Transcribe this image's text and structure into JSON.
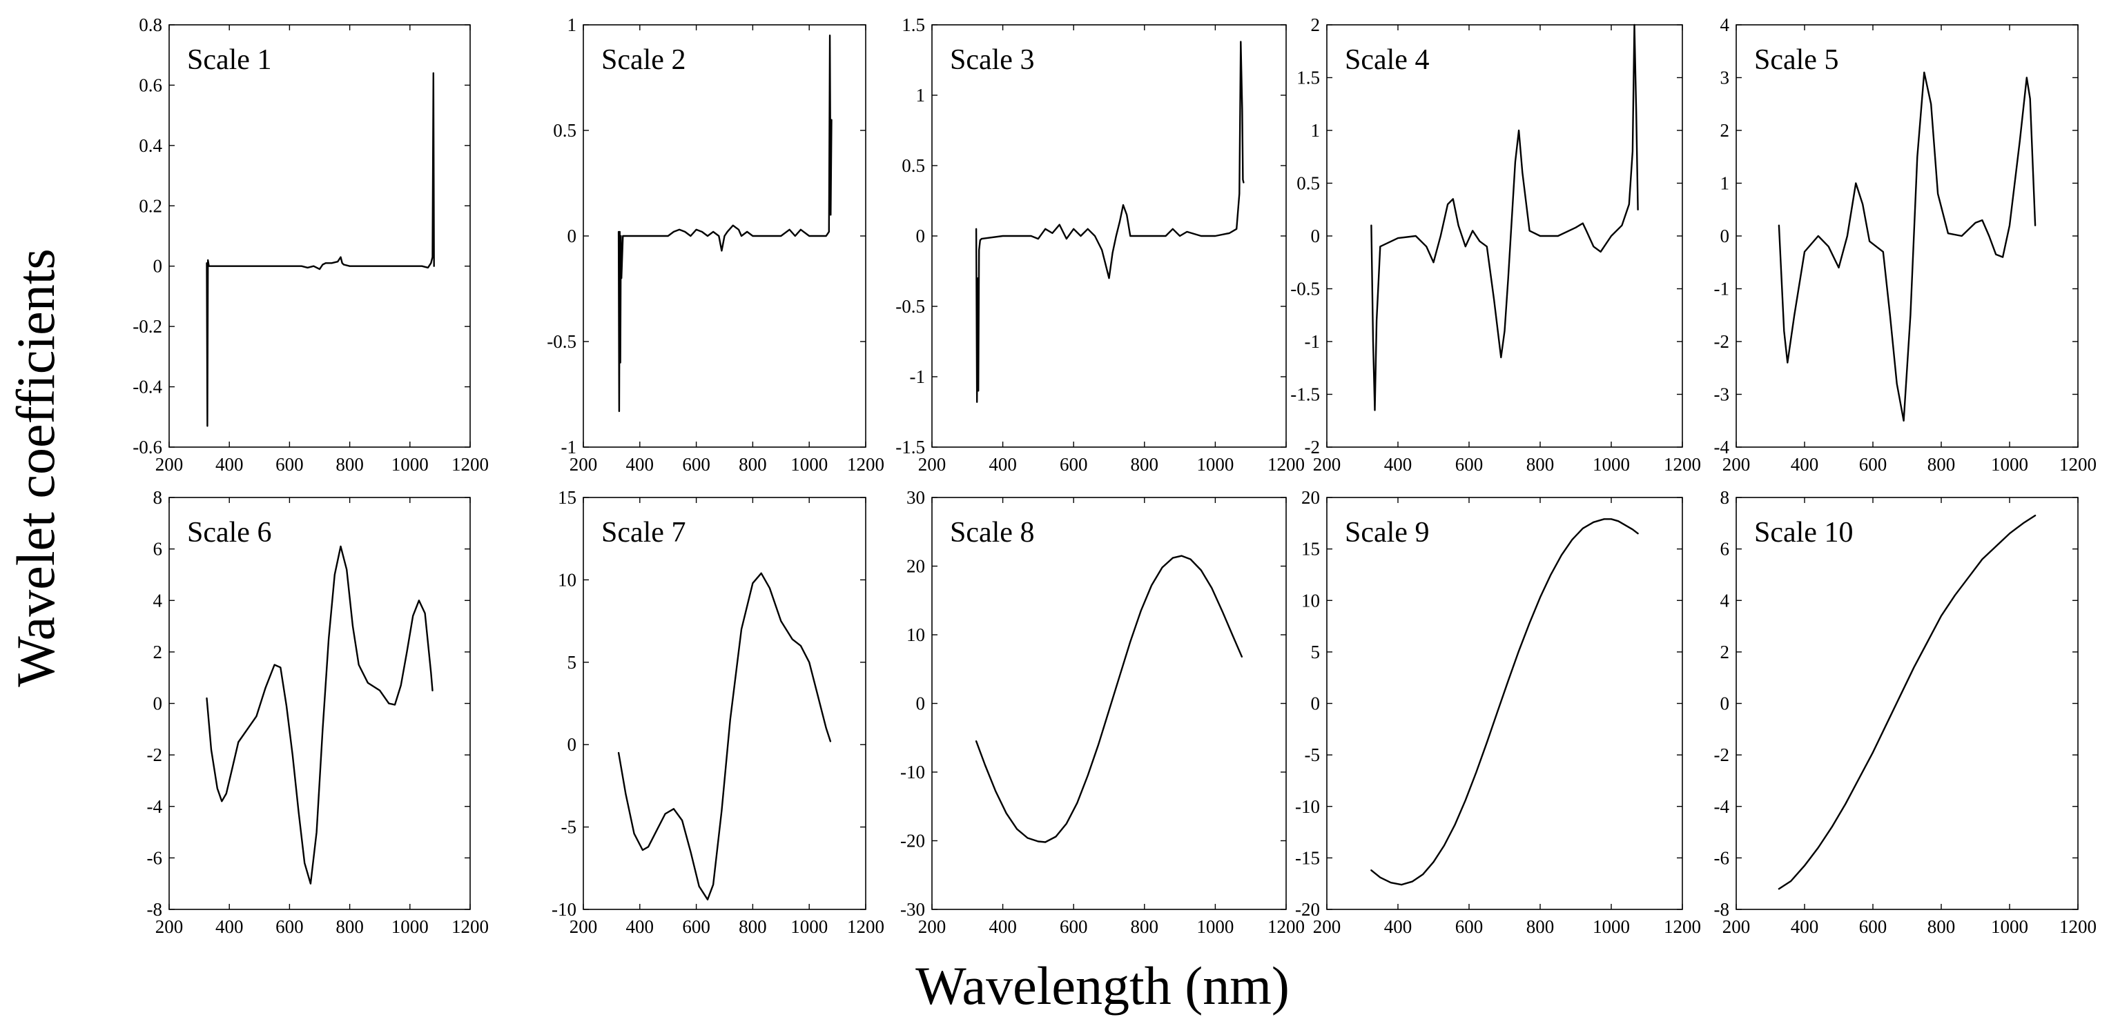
{
  "figure": {
    "ylabel": "Wavelet coefficients",
    "xlabel": "Wavelength (nm)"
  },
  "chart_data": [
    {
      "type": "line",
      "title": "Scale 1",
      "xlim": [
        200,
        1200
      ],
      "ylim": [
        -0.6,
        0.8
      ],
      "xticks": [
        200,
        400,
        600,
        800,
        1000,
        1200
      ],
      "xtick_labels": [
        "200",
        "400",
        "600",
        "800",
        "1000",
        "1200"
      ],
      "yticks": [
        -0.6,
        -0.4,
        -0.2,
        0,
        0.2,
        0.4,
        0.6,
        0.8
      ],
      "ytick_labels": [
        "-0.6",
        "-0.4",
        "-0.2",
        "0",
        "0.2",
        "0.4",
        "0.6",
        "0.8"
      ],
      "series": [
        {
          "x": [
            325,
            327,
            329,
            332,
            400,
            500,
            600,
            640,
            660,
            680,
            700,
            710,
            720,
            740,
            760,
            770,
            775,
            780,
            800,
            900,
            1000,
            1040,
            1060,
            1070,
            1075,
            1078,
            1080
          ],
          "y": [
            0.01,
            -0.53,
            0.02,
            0.0,
            0.0,
            0.0,
            0.0,
            0.0,
            -0.005,
            0.0,
            -0.01,
            0.005,
            0.01,
            0.01,
            0.015,
            0.03,
            0.01,
            0.005,
            0.0,
            0.0,
            0.0,
            0.0,
            -0.005,
            0.01,
            0.03,
            0.64,
            0.0
          ]
        }
      ]
    },
    {
      "type": "line",
      "title": "Scale 2",
      "xlim": [
        200,
        1200
      ],
      "ylim": [
        -1,
        1
      ],
      "xticks": [
        200,
        400,
        600,
        800,
        1000,
        1200
      ],
      "xtick_labels": [
        "200",
        "400",
        "600",
        "800",
        "1000",
        "1200"
      ],
      "yticks": [
        -1,
        -0.5,
        0,
        0.5,
        1
      ],
      "ytick_labels": [
        "-1",
        "-0.5",
        "0",
        "0.5",
        "1"
      ],
      "series": [
        {
          "x": [
            325,
            327,
            329,
            331,
            333,
            335,
            340,
            400,
            500,
            520,
            540,
            560,
            580,
            600,
            620,
            640,
            660,
            680,
            690,
            700,
            710,
            730,
            740,
            750,
            760,
            780,
            800,
            900,
            930,
            950,
            970,
            1000,
            1040,
            1060,
            1070,
            1073,
            1076,
            1079
          ],
          "y": [
            0.02,
            -0.83,
            0.02,
            -0.6,
            0.0,
            -0.2,
            0.0,
            0.0,
            0.0,
            0.02,
            0.03,
            0.02,
            0.0,
            0.03,
            0.02,
            0.0,
            0.02,
            0.0,
            -0.07,
            0.0,
            0.02,
            0.05,
            0.04,
            0.03,
            0.0,
            0.02,
            0.0,
            0.0,
            0.03,
            0.0,
            0.03,
            0.0,
            0.0,
            0.0,
            0.02,
            0.95,
            0.1,
            0.55
          ]
        }
      ]
    },
    {
      "type": "line",
      "title": "Scale 3",
      "xlim": [
        200,
        1200
      ],
      "ylim": [
        -1.5,
        1.5
      ],
      "xticks": [
        200,
        400,
        600,
        800,
        1000,
        1200
      ],
      "xtick_labels": [
        "200",
        "400",
        "600",
        "800",
        "1000",
        "1200"
      ],
      "yticks": [
        -1.5,
        -1,
        -0.5,
        0,
        0.5,
        1,
        1.5
      ],
      "ytick_labels": [
        "-1.5",
        "-1",
        "-0.5",
        "0",
        "0.5",
        "1",
        "1.5"
      ],
      "series": [
        {
          "x": [
            325,
            327,
            329,
            331,
            333,
            336,
            340,
            400,
            480,
            500,
            520,
            540,
            560,
            580,
            600,
            620,
            640,
            660,
            680,
            690,
            700,
            710,
            720,
            730,
            740,
            750,
            760,
            780,
            800,
            860,
            880,
            900,
            920,
            960,
            1000,
            1040,
            1060,
            1068,
            1072,
            1076,
            1078,
            1080
          ],
          "y": [
            0.05,
            -1.18,
            -0.3,
            -1.1,
            -0.1,
            -0.03,
            -0.02,
            0.0,
            0.0,
            -0.02,
            0.05,
            0.02,
            0.08,
            -0.02,
            0.05,
            0.0,
            0.05,
            0.0,
            -0.1,
            -0.2,
            -0.3,
            -0.12,
            0.0,
            0.1,
            0.22,
            0.15,
            0.0,
            0.0,
            0.0,
            0.0,
            0.05,
            0.0,
            0.03,
            0.0,
            0.0,
            0.02,
            0.05,
            0.3,
            1.38,
            0.9,
            0.4,
            0.38
          ]
        }
      ]
    },
    {
      "type": "line",
      "title": "Scale 4",
      "xlim": [
        200,
        1200
      ],
      "ylim": [
        -2,
        2
      ],
      "xticks": [
        200,
        400,
        600,
        800,
        1000,
        1200
      ],
      "xtick_labels": [
        "200",
        "400",
        "600",
        "800",
        "1000",
        "1200"
      ],
      "yticks": [
        -2,
        -1.5,
        -1,
        -0.5,
        0,
        0.5,
        1,
        1.5,
        2
      ],
      "ytick_labels": [
        "-2",
        "-1.5",
        "-1",
        "-0.5",
        "0",
        "0.5",
        "1",
        "1.5",
        "2"
      ],
      "series": [
        {
          "x": [
            325,
            330,
            335,
            340,
            350,
            400,
            450,
            480,
            500,
            520,
            540,
            555,
            570,
            590,
            610,
            630,
            650,
            670,
            690,
            700,
            710,
            730,
            740,
            750,
            770,
            800,
            850,
            900,
            920,
            930,
            950,
            970,
            1000,
            1030,
            1050,
            1060,
            1065,
            1070,
            1075
          ],
          "y": [
            0.1,
            -1.0,
            -1.65,
            -0.8,
            -0.1,
            -0.02,
            0.0,
            -0.1,
            -0.25,
            0.0,
            0.3,
            0.35,
            0.1,
            -0.1,
            0.05,
            -0.05,
            -0.1,
            -0.6,
            -1.15,
            -0.9,
            -0.4,
            0.7,
            1.0,
            0.6,
            0.05,
            0.0,
            0.0,
            0.08,
            0.12,
            0.05,
            -0.1,
            -0.15,
            0.0,
            0.1,
            0.3,
            0.8,
            2.0,
            1.2,
            0.25
          ]
        }
      ]
    },
    {
      "type": "line",
      "title": "Scale 5",
      "xlim": [
        200,
        1200
      ],
      "ylim": [
        -4,
        4
      ],
      "xticks": [
        200,
        400,
        600,
        800,
        1000,
        1200
      ],
      "xtick_labels": [
        "200",
        "400",
        "600",
        "800",
        "1000",
        "1200"
      ],
      "yticks": [
        -4,
        -3,
        -2,
        -1,
        0,
        1,
        2,
        3,
        4
      ],
      "ytick_labels": [
        "-4",
        "-3",
        "-2",
        "-1",
        "0",
        "1",
        "2",
        "3",
        "4"
      ],
      "series": [
        {
          "x": [
            325,
            340,
            350,
            370,
            400,
            440,
            470,
            500,
            525,
            550,
            570,
            590,
            610,
            630,
            650,
            670,
            690,
            710,
            730,
            750,
            770,
            790,
            820,
            860,
            900,
            920,
            940,
            960,
            980,
            1000,
            1030,
            1050,
            1060,
            1075
          ],
          "y": [
            0.2,
            -1.8,
            -2.4,
            -1.5,
            -0.3,
            0.0,
            -0.2,
            -0.6,
            0.0,
            1.0,
            0.6,
            -0.1,
            -0.2,
            -0.3,
            -1.5,
            -2.8,
            -3.5,
            -1.5,
            1.5,
            3.1,
            2.5,
            0.8,
            0.05,
            0.0,
            0.25,
            0.3,
            0.0,
            -0.35,
            -0.4,
            0.2,
            1.8,
            3.0,
            2.6,
            0.2
          ]
        }
      ]
    },
    {
      "type": "line",
      "title": "Scale 6",
      "xlim": [
        200,
        1200
      ],
      "ylim": [
        -8,
        8
      ],
      "xticks": [
        200,
        400,
        600,
        800,
        1000,
        1200
      ],
      "xtick_labels": [
        "200",
        "400",
        "600",
        "800",
        "1000",
        "1200"
      ],
      "yticks": [
        -8,
        -6,
        -4,
        -2,
        0,
        2,
        4,
        6,
        8
      ],
      "ytick_labels": [
        "-8",
        "-6",
        "-4",
        "-2",
        "0",
        "2",
        "4",
        "6",
        "8"
      ],
      "series": [
        {
          "x": [
            325,
            340,
            360,
            375,
            390,
            410,
            430,
            460,
            490,
            520,
            550,
            570,
            590,
            610,
            630,
            650,
            670,
            690,
            710,
            730,
            750,
            770,
            790,
            810,
            830,
            860,
            900,
            930,
            950,
            970,
            990,
            1010,
            1030,
            1050,
            1070,
            1075
          ],
          "y": [
            0.2,
            -1.8,
            -3.3,
            -3.8,
            -3.5,
            -2.5,
            -1.5,
            -1.0,
            -0.5,
            0.6,
            1.5,
            1.4,
            -0.1,
            -2.0,
            -4.2,
            -6.2,
            -7.0,
            -5.0,
            -1.0,
            2.5,
            5.0,
            6.1,
            5.2,
            3.0,
            1.5,
            0.8,
            0.5,
            0.0,
            -0.05,
            0.7,
            2.0,
            3.4,
            4.0,
            3.5,
            1.2,
            0.5
          ]
        }
      ]
    },
    {
      "type": "line",
      "title": "Scale 7",
      "xlim": [
        200,
        1200
      ],
      "ylim": [
        -10,
        15
      ],
      "xticks": [
        200,
        400,
        600,
        800,
        1000,
        1200
      ],
      "xtick_labels": [
        "200",
        "400",
        "600",
        "800",
        "1000",
        "1200"
      ],
      "yticks": [
        -10,
        -5,
        0,
        5,
        10,
        15
      ],
      "ytick_labels": [
        "-10",
        "-5",
        "0",
        "5",
        "10",
        "15"
      ],
      "series": [
        {
          "x": [
            325,
            350,
            380,
            410,
            430,
            460,
            490,
            520,
            550,
            580,
            610,
            640,
            660,
            690,
            720,
            760,
            800,
            830,
            860,
            900,
            940,
            970,
            1000,
            1030,
            1060,
            1075
          ],
          "y": [
            -0.5,
            -3.0,
            -5.4,
            -6.4,
            -6.2,
            -5.2,
            -4.2,
            -3.9,
            -4.6,
            -6.5,
            -8.6,
            -9.4,
            -8.5,
            -4.0,
            1.5,
            7.0,
            9.8,
            10.4,
            9.5,
            7.5,
            6.4,
            6.0,
            5.0,
            3.0,
            1.0,
            0.2
          ]
        }
      ]
    },
    {
      "type": "line",
      "title": "Scale 8",
      "xlim": [
        200,
        1200
      ],
      "ylim": [
        -30,
        30
      ],
      "xticks": [
        200,
        400,
        600,
        800,
        1000,
        1200
      ],
      "xtick_labels": [
        "200",
        "400",
        "600",
        "800",
        "1000",
        "1200"
      ],
      "yticks": [
        -30,
        -20,
        -10,
        0,
        10,
        20,
        30
      ],
      "ytick_labels": [
        "-30",
        "-20",
        "-10",
        "0",
        "10",
        "20",
        "30"
      ],
      "series": [
        {
          "x": [
            325,
            350,
            380,
            410,
            440,
            470,
            500,
            520,
            550,
            580,
            610,
            640,
            670,
            700,
            730,
            760,
            790,
            820,
            850,
            880,
            905,
            930,
            960,
            990,
            1020,
            1050,
            1075
          ],
          "y": [
            -5.5,
            -9.0,
            -12.8,
            -16.0,
            -18.3,
            -19.6,
            -20.1,
            -20.2,
            -19.4,
            -17.5,
            -14.5,
            -10.5,
            -6.0,
            -1.0,
            4.0,
            9.0,
            13.5,
            17.2,
            19.8,
            21.2,
            21.5,
            21.0,
            19.4,
            16.8,
            13.4,
            9.8,
            6.8
          ]
        }
      ]
    },
    {
      "type": "line",
      "title": "Scale 9",
      "xlim": [
        200,
        1200
      ],
      "ylim": [
        -20,
        20
      ],
      "xticks": [
        200,
        400,
        600,
        800,
        1000,
        1200
      ],
      "xtick_labels": [
        "200",
        "400",
        "600",
        "800",
        "1000",
        "1200"
      ],
      "yticks": [
        -20,
        -15,
        -10,
        -5,
        0,
        5,
        10,
        15,
        20
      ],
      "ytick_labels": [
        "-20",
        "-15",
        "-10",
        "-5",
        "0",
        "5",
        "10",
        "15",
        "20"
      ],
      "series": [
        {
          "x": [
            325,
            350,
            380,
            410,
            440,
            470,
            500,
            530,
            560,
            590,
            620,
            650,
            680,
            710,
            740,
            770,
            800,
            830,
            860,
            890,
            920,
            950,
            980,
            1000,
            1020,
            1040,
            1060,
            1075
          ],
          "y": [
            -16.2,
            -16.9,
            -17.4,
            -17.6,
            -17.3,
            -16.6,
            -15.4,
            -13.8,
            -11.8,
            -9.4,
            -6.7,
            -3.8,
            -0.8,
            2.2,
            5.1,
            7.8,
            10.3,
            12.5,
            14.4,
            15.9,
            17.0,
            17.6,
            17.9,
            17.9,
            17.7,
            17.3,
            16.9,
            16.5
          ]
        }
      ]
    },
    {
      "type": "line",
      "title": "Scale 10",
      "xlim": [
        200,
        1200
      ],
      "ylim": [
        -8,
        8
      ],
      "xticks": [
        200,
        400,
        600,
        800,
        1000,
        1200
      ],
      "xtick_labels": [
        "200",
        "400",
        "600",
        "800",
        "1000",
        "1200"
      ],
      "yticks": [
        -8,
        -6,
        -4,
        -2,
        0,
        2,
        4,
        6,
        8
      ],
      "ytick_labels": [
        "-8",
        "-6",
        "-4",
        "-2",
        "0",
        "2",
        "4",
        "6",
        "8"
      ],
      "series": [
        {
          "x": [
            325,
            360,
            400,
            440,
            480,
            520,
            560,
            600,
            640,
            680,
            720,
            760,
            800,
            840,
            880,
            920,
            960,
            1000,
            1040,
            1075
          ],
          "y": [
            -7.2,
            -6.9,
            -6.3,
            -5.6,
            -4.8,
            -3.9,
            -2.9,
            -1.9,
            -0.8,
            0.3,
            1.4,
            2.4,
            3.4,
            4.2,
            4.9,
            5.6,
            6.1,
            6.6,
            7.0,
            7.3
          ]
        }
      ]
    }
  ]
}
